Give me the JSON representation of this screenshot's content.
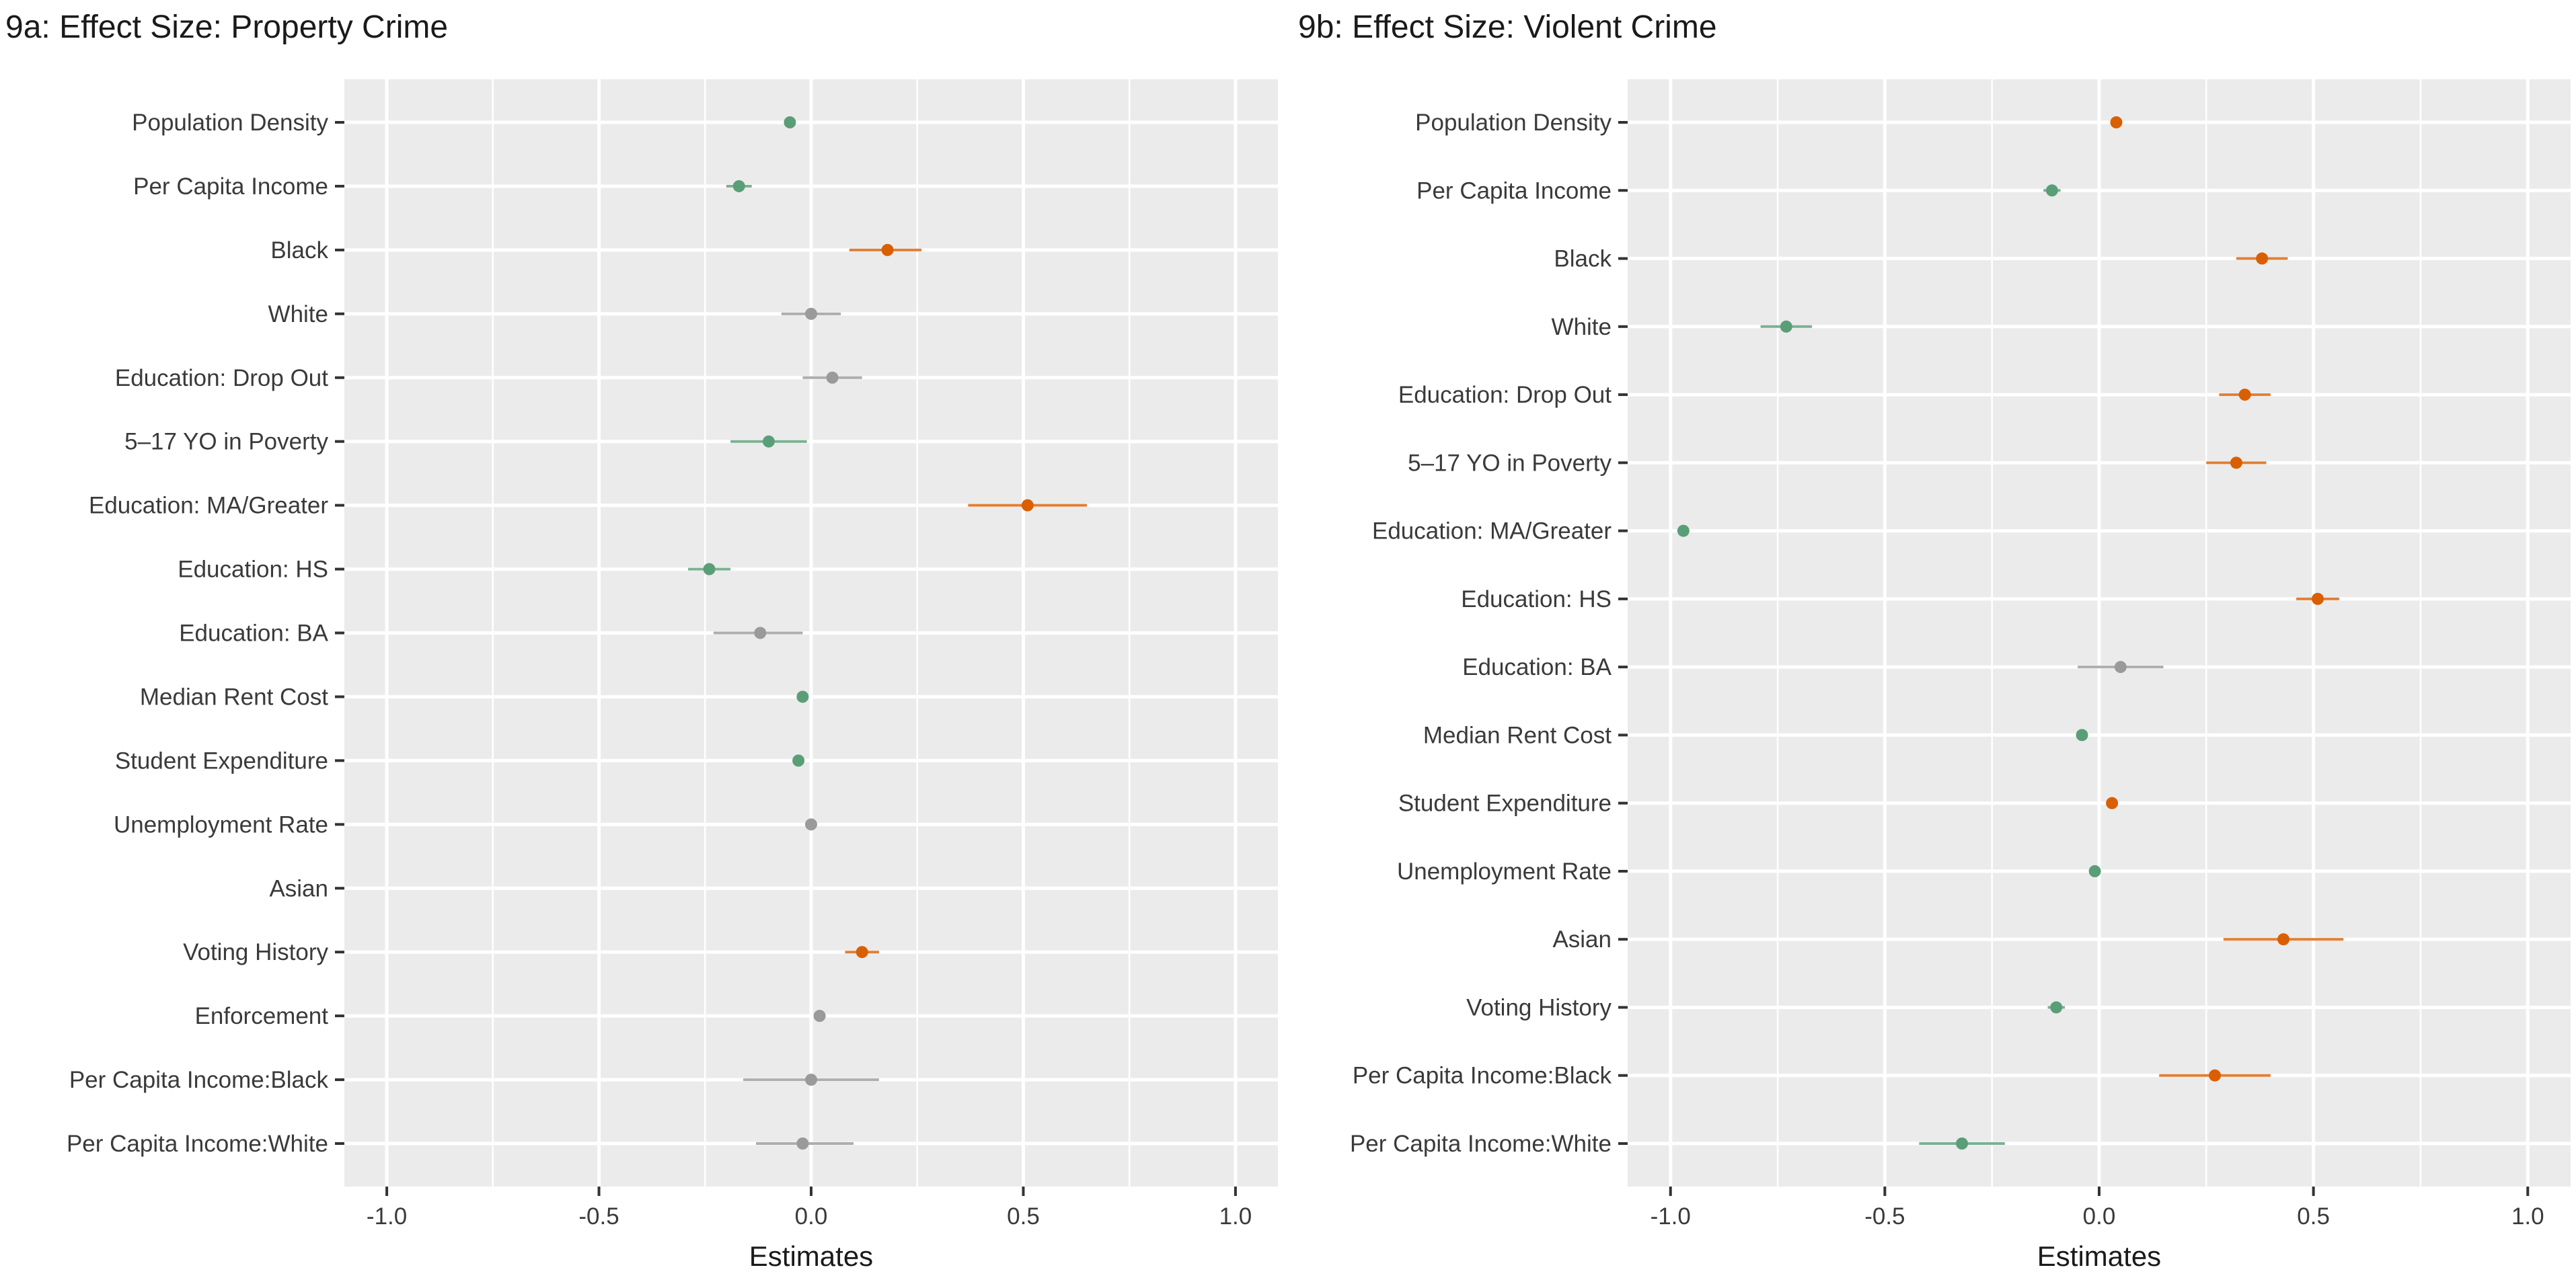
{
  "colors": {
    "positive": "#d95f02",
    "negative": "#5a9e77",
    "nonsignificant": "#9a9a9a",
    "panel_bg": "#ebebeb",
    "grid": "#ffffff"
  },
  "chart_data": [
    {
      "type": "scatter",
      "subtype": "coefficient-plot",
      "title": "9a: Effect Size:  Property Crime",
      "xlabel": "Estimates",
      "ylabel": "",
      "xlim": [
        -1.1,
        1.1
      ],
      "xticks": [
        "-1.0",
        "-0.5",
        "0.0",
        "0.5",
        "1.0"
      ],
      "xtick_values": [
        -1.0,
        -0.5,
        0.0,
        0.5,
        1.0
      ],
      "grid": true,
      "categories": [
        "Population Density",
        "Per Capita Income",
        "Black",
        "White",
        "Education: Drop Out",
        "5–17 YO in Poverty",
        "Education: MA/Greater",
        "Education: HS",
        "Education: BA",
        "Median Rent Cost",
        "Student Expenditure",
        "Unemployment Rate",
        "Asian",
        "Voting History",
        "Enforcement",
        "Per Capita Income:Black",
        "Per Capita Income:White"
      ],
      "estimates": [
        -0.05,
        -0.17,
        0.18,
        0.0,
        0.05,
        -0.1,
        0.51,
        -0.24,
        -0.12,
        -0.02,
        -0.03,
        0.0,
        null,
        0.12,
        0.02,
        0.0,
        -0.02
      ],
      "ci_low": [
        -0.06,
        -0.2,
        0.09,
        -0.07,
        -0.02,
        -0.19,
        0.37,
        -0.29,
        -0.23,
        -0.03,
        -0.04,
        -0.01,
        null,
        0.08,
        0.01,
        -0.16,
        -0.13
      ],
      "ci_high": [
        -0.04,
        -0.14,
        0.26,
        0.07,
        0.12,
        -0.01,
        0.65,
        -0.19,
        -0.02,
        -0.01,
        -0.02,
        0.01,
        null,
        0.16,
        0.03,
        0.16,
        0.1
      ],
      "significance": [
        "neg",
        "neg",
        "pos",
        "ns",
        "ns",
        "neg",
        "pos",
        "neg",
        "ns",
        "neg",
        "neg",
        "ns",
        "none",
        "pos",
        "ns",
        "ns",
        "ns"
      ]
    },
    {
      "type": "scatter",
      "subtype": "coefficient-plot",
      "title": "9b: Effect Size: Violent Crime",
      "xlabel": "Estimates",
      "ylabel": "",
      "xlim": [
        -1.1,
        1.1
      ],
      "xticks": [
        "-1.0",
        "-0.5",
        "0.0",
        "0.5",
        "1.0"
      ],
      "xtick_values": [
        -1.0,
        -0.5,
        0.0,
        0.5,
        1.0
      ],
      "grid": true,
      "categories": [
        "Population Density",
        "Per Capita Income",
        "Black",
        "White",
        "Education: Drop Out",
        "5–17 YO in Poverty",
        "Education: MA/Greater",
        "Education: HS",
        "Education: BA",
        "Median Rent Cost",
        "Student Expenditure",
        "Unemployment Rate",
        "Asian",
        "Voting History",
        "Per Capita Income:Black",
        "Per Capita Income:White"
      ],
      "estimates": [
        0.04,
        -0.11,
        0.38,
        -0.73,
        0.34,
        0.32,
        -0.97,
        0.51,
        0.05,
        -0.04,
        0.03,
        -0.01,
        0.43,
        -0.1,
        0.27,
        -0.32
      ],
      "ci_low": [
        0.03,
        -0.13,
        0.32,
        -0.79,
        0.28,
        0.25,
        -0.98,
        0.46,
        -0.05,
        -0.05,
        0.02,
        -0.02,
        0.29,
        -0.12,
        0.14,
        -0.42
      ],
      "ci_high": [
        0.05,
        -0.09,
        0.44,
        -0.67,
        0.4,
        0.39,
        -0.96,
        0.56,
        0.15,
        -0.03,
        0.04,
        0.0,
        0.57,
        -0.08,
        0.4,
        -0.22
      ],
      "significance": [
        "pos",
        "neg",
        "pos",
        "neg",
        "pos",
        "pos",
        "neg",
        "pos",
        "ns",
        "neg",
        "pos",
        "neg",
        "pos",
        "neg",
        "pos",
        "neg"
      ]
    }
  ]
}
